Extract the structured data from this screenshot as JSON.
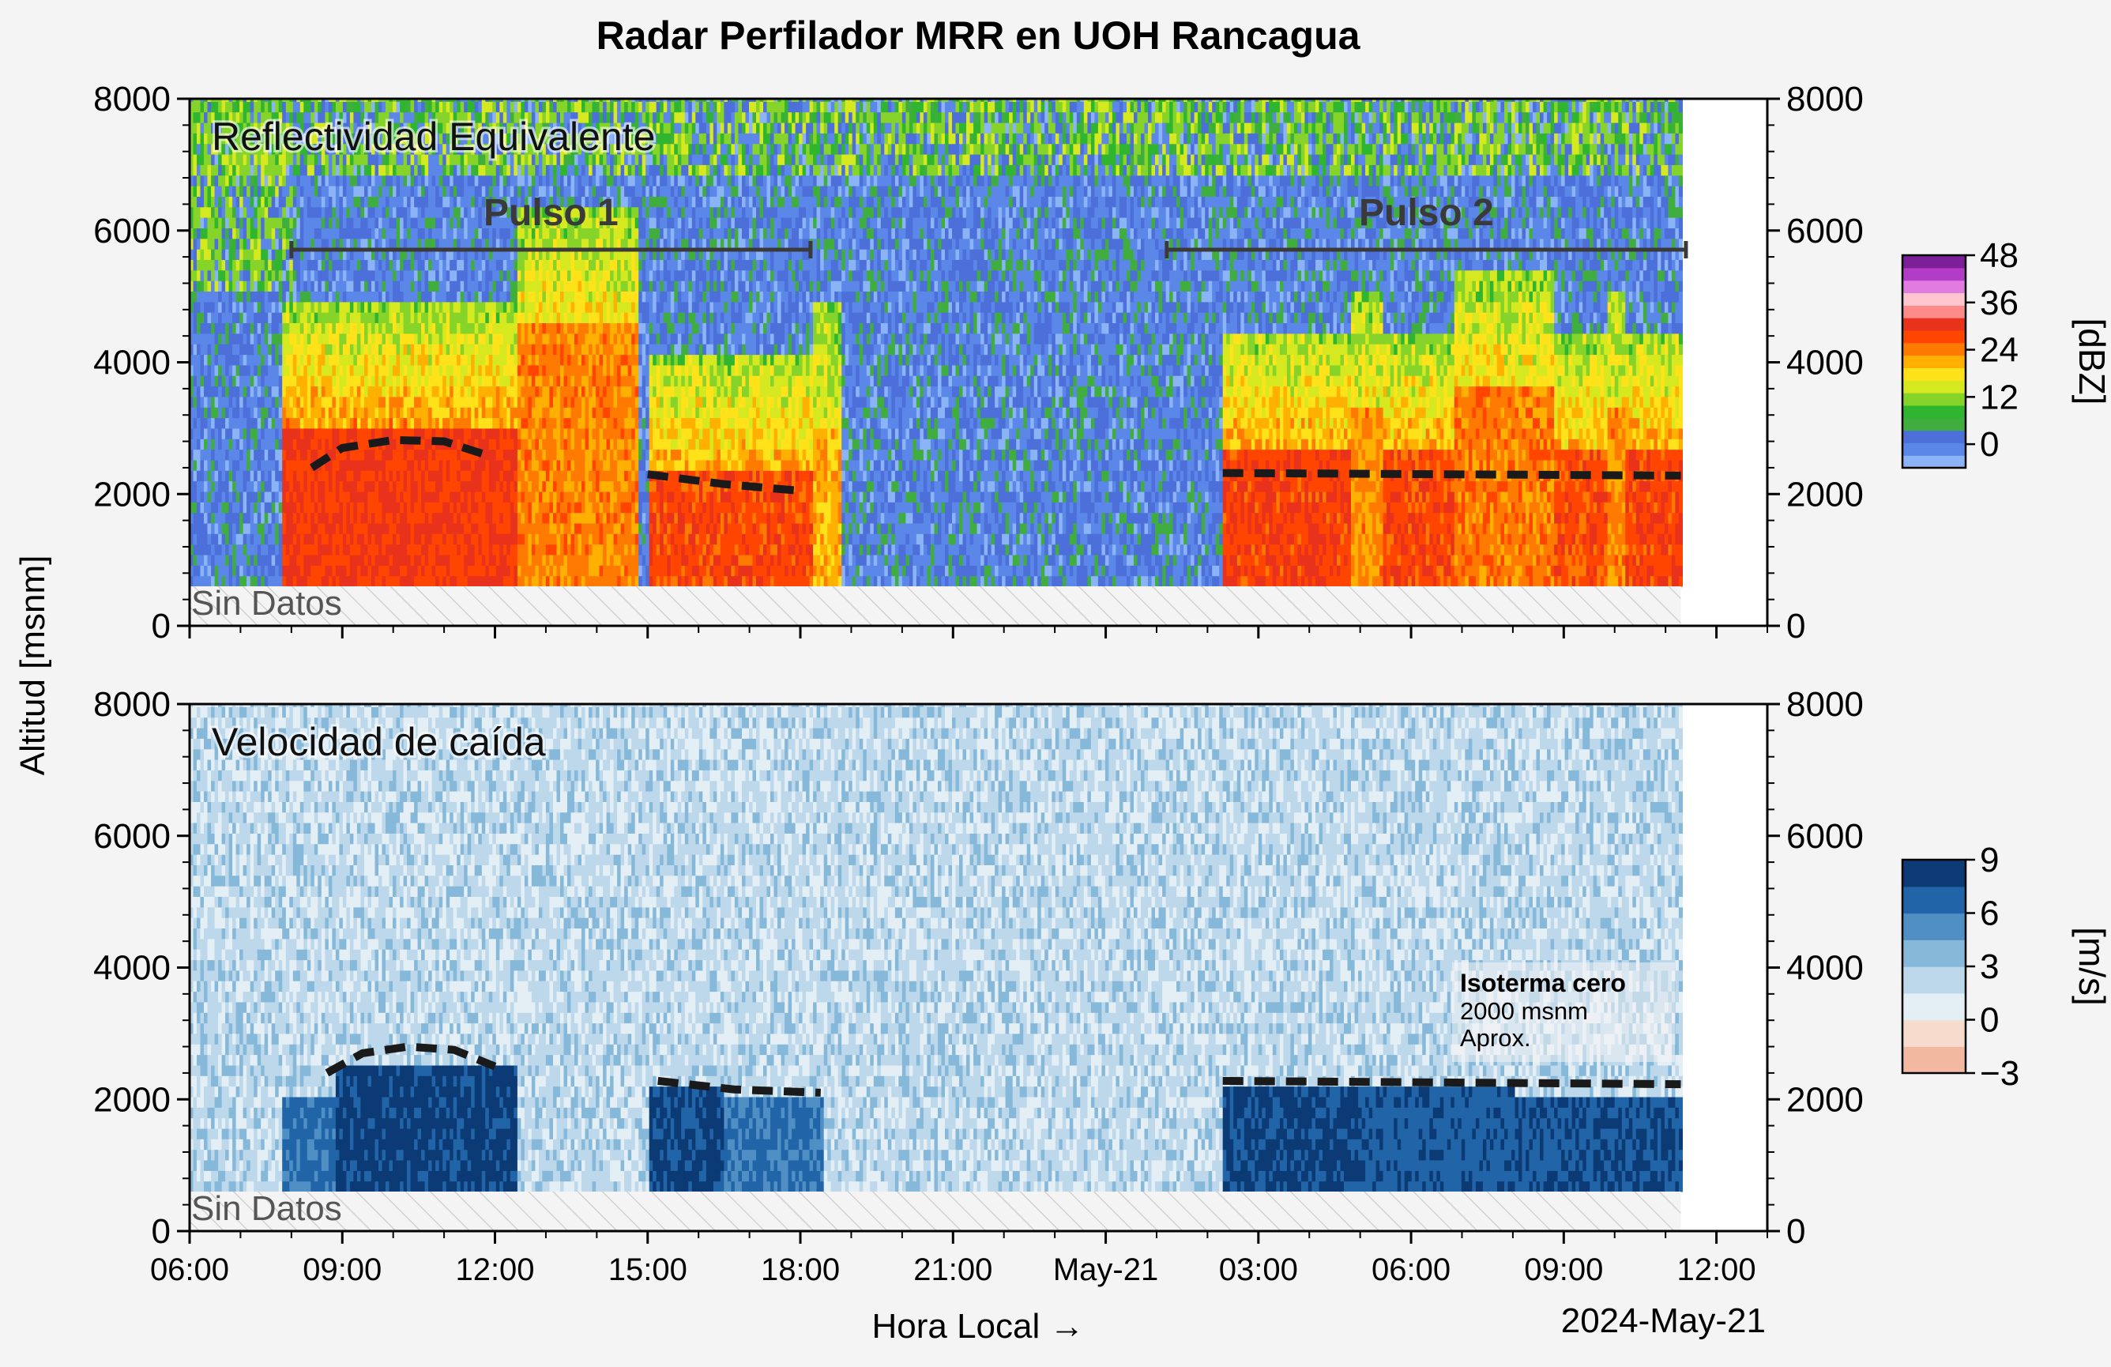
{
  "figure": {
    "title": "Radar Perfilador MRR en UOH Rancagua",
    "ylabel": "Altitud [msnm]",
    "xlabel": "Hora Local →",
    "date_label": "2024-May-21"
  },
  "chart_data": [
    {
      "type": "heatmap",
      "panel_label": "Reflectividad Equivalente",
      "no_data_label": "Sin Datos",
      "x_range_hours": [
        0,
        31
      ],
      "data_end_hours": 29.3,
      "ylim": [
        0,
        8000
      ],
      "y_ticks": [
        0,
        2000,
        4000,
        6000,
        8000
      ],
      "no_data_below": 600,
      "colorbar": {
        "label": "[dBZ]",
        "min": -6,
        "max": 48,
        "ticks": [
          "0",
          "12",
          "24",
          "36",
          "48"
        ],
        "tick_values": [
          0,
          12,
          24,
          36,
          48
        ],
        "colors": [
          "#8ab4f5",
          "#5b87e8",
          "#4d6fd9",
          "#3fae3f",
          "#2fb52f",
          "#86d32a",
          "#d6e81f",
          "#ffe21a",
          "#ffb000",
          "#ff7a00",
          "#ff4500",
          "#e8321c",
          "#ff8a8a",
          "#ffc6d0",
          "#e07be0",
          "#b23cc8",
          "#7c1f99"
        ]
      },
      "pulses": [
        {
          "label": "Pulso 1",
          "start_h": 2.0,
          "end_h": 12.2
        },
        {
          "label": "Pulso 2",
          "start_h": 19.2,
          "end_h": 29.4
        }
      ],
      "isotherm_segments": [
        [
          [
            2.4,
            2400
          ],
          [
            3.0,
            2700
          ],
          [
            4.0,
            2820
          ],
          [
            5.0,
            2800
          ],
          [
            5.8,
            2600
          ]
        ],
        [
          [
            9.0,
            2300
          ],
          [
            10.5,
            2150
          ],
          [
            12.0,
            2050
          ]
        ],
        [
          [
            20.3,
            2320
          ],
          [
            29.3,
            2280
          ]
        ]
      ],
      "rain_events": [
        {
          "start_h": 1.8,
          "end_h": 6.4,
          "top": 3000,
          "intensity": 1.0
        },
        {
          "start_h": 6.4,
          "end_h": 8.8,
          "top": 4500,
          "intensity": 0.55
        },
        {
          "start_h": 9.0,
          "end_h": 12.2,
          "top": 2300,
          "intensity": 0.9
        },
        {
          "start_h": 12.2,
          "end_h": 12.8,
          "top": 3000,
          "intensity": 0.35
        },
        {
          "start_h": 20.3,
          "end_h": 22.8,
          "top": 2600,
          "intensity": 0.95
        },
        {
          "start_h": 22.8,
          "end_h": 23.4,
          "top": 3200,
          "intensity": 0.5
        },
        {
          "start_h": 23.4,
          "end_h": 24.8,
          "top": 2600,
          "intensity": 0.9
        },
        {
          "start_h": 24.8,
          "end_h": 26.8,
          "top": 3500,
          "intensity": 0.6
        },
        {
          "start_h": 26.8,
          "end_h": 27.8,
          "top": 2600,
          "intensity": 0.85
        },
        {
          "start_h": 27.8,
          "end_h": 28.2,
          "top": 3200,
          "intensity": 0.5
        },
        {
          "start_h": 28.2,
          "end_h": 29.3,
          "top": 2600,
          "intensity": 0.95
        }
      ]
    },
    {
      "type": "heatmap",
      "panel_label": "Velocidad de caída",
      "no_data_label": "Sin Datos",
      "x_range_hours": [
        0,
        31
      ],
      "data_end_hours": 29.3,
      "ylim": [
        0,
        8000
      ],
      "y_ticks": [
        0,
        2000,
        4000,
        6000,
        8000
      ],
      "no_data_below": 600,
      "colorbar": {
        "label": "[m/s]",
        "min": -3,
        "max": 9,
        "ticks": [
          "−3",
          "0",
          "3",
          "6",
          "9"
        ],
        "tick_values": [
          -3,
          0,
          3,
          6,
          9
        ],
        "colors": [
          "#f2b9a0",
          "#f7dccd",
          "#e4eef5",
          "#bcd8ea",
          "#86b8da",
          "#4f8fc4",
          "#2165a8",
          "#0b3a74"
        ]
      },
      "annotation": {
        "title": "Isoterma cero",
        "lines": [
          "2000 msnm",
          "Aprox."
        ]
      },
      "isotherm_segments": [
        [
          [
            2.7,
            2400
          ],
          [
            3.4,
            2700
          ],
          [
            4.3,
            2800
          ],
          [
            5.2,
            2750
          ],
          [
            6.0,
            2500
          ]
        ],
        [
          [
            9.2,
            2280
          ],
          [
            10.7,
            2150
          ],
          [
            12.4,
            2100
          ]
        ],
        [
          [
            20.3,
            2280
          ],
          [
            29.3,
            2230
          ]
        ]
      ],
      "rain_events": [
        {
          "start_h": 1.8,
          "end_h": 2.8,
          "top": 2000,
          "intensity": 0.6
        },
        {
          "start_h": 2.8,
          "end_h": 6.4,
          "top": 2500,
          "intensity": 1.0
        },
        {
          "start_h": 9.0,
          "end_h": 10.5,
          "top": 2100,
          "intensity": 0.9
        },
        {
          "start_h": 10.5,
          "end_h": 12.4,
          "top": 2000,
          "intensity": 0.55
        },
        {
          "start_h": 20.3,
          "end_h": 23.0,
          "top": 2100,
          "intensity": 0.95
        },
        {
          "start_h": 23.0,
          "end_h": 26.0,
          "top": 2100,
          "intensity": 0.75
        },
        {
          "start_h": 26.0,
          "end_h": 29.3,
          "top": 2000,
          "intensity": 0.85
        }
      ]
    }
  ],
  "x_axis": {
    "start_hour_local": 6,
    "major_ticks_hours": [
      0,
      3,
      6,
      9,
      12,
      15,
      18,
      21,
      24,
      27,
      30
    ],
    "tick_labels": [
      "06:00",
      "09:00",
      "12:00",
      "15:00",
      "18:00",
      "21:00",
      "May-21",
      "03:00",
      "06:00",
      "09:00",
      "12:00"
    ]
  }
}
